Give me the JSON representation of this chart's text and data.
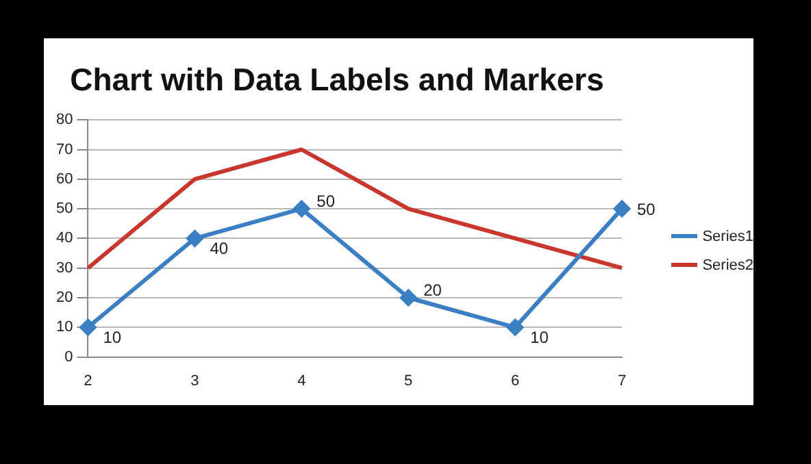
{
  "chart_data": {
    "type": "line",
    "title": "Chart with Data Labels and Markers",
    "categories": [
      "2",
      "3",
      "4",
      "5",
      "6",
      "7"
    ],
    "series": [
      {
        "name": "Series1",
        "color": "#3a7fc4",
        "values": [
          10,
          40,
          50,
          20,
          10,
          50
        ],
        "marker": "diamond",
        "value_labels": [
          "10",
          "40",
          "50",
          "20",
          "10",
          "50"
        ]
      },
      {
        "name": "Series2",
        "color": "#c8362d",
        "values": [
          30,
          60,
          70,
          50,
          40,
          30
        ],
        "marker": "none"
      }
    ],
    "ylim": [
      0,
      80
    ],
    "yticks": [
      0,
      10,
      20,
      30,
      40,
      50,
      60,
      70,
      80
    ],
    "grid": "y",
    "legend": "right"
  }
}
